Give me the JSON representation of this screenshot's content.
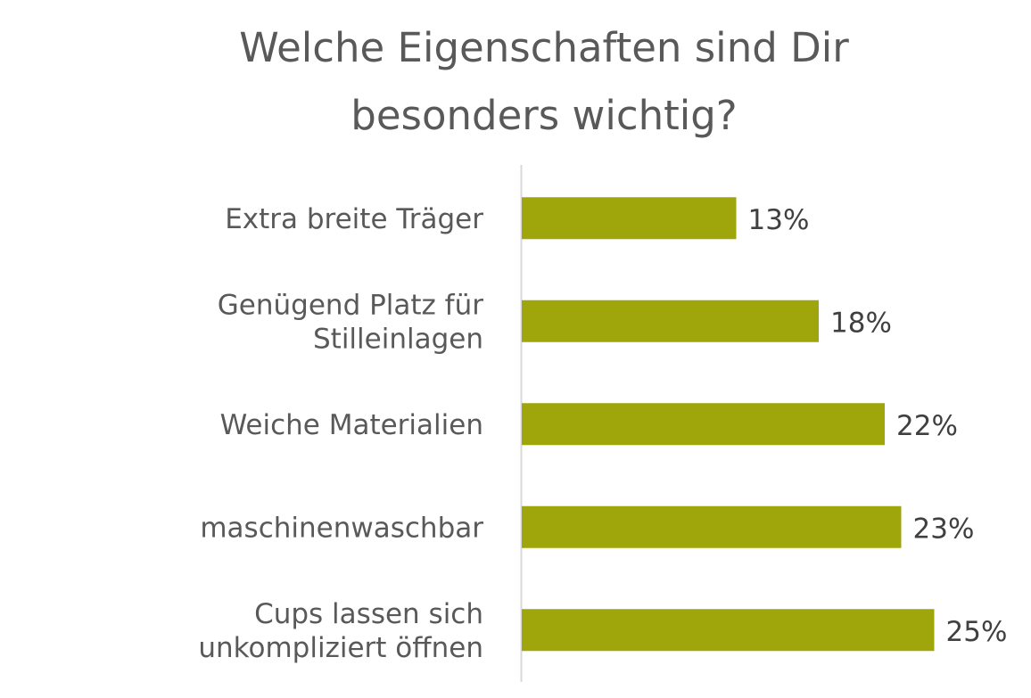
{
  "chart_data": {
    "type": "bar",
    "orientation": "horizontal",
    "title_lines": [
      "Welche Eigenschaften sind Dir",
      "besonders wichtig?"
    ],
    "categories": [
      [
        "Extra breite Träger"
      ],
      [
        "Genügend Platz für",
        "Stilleinlagen"
      ],
      [
        "Weiche Materialien"
      ],
      [
        "maschinenwaschbar"
      ],
      [
        "Cups lassen sich",
        "unkompliziert öffnen"
      ]
    ],
    "values": [
      13,
      18,
      22,
      23,
      25
    ],
    "value_labels": [
      "13%",
      "18%",
      "22%",
      "23%",
      "25%"
    ],
    "unit": "%",
    "xlim": [
      0,
      30
    ],
    "grid": false,
    "legend": "none",
    "bar_color": "#9ea60c",
    "axis_color": "#d9d9d9"
  }
}
